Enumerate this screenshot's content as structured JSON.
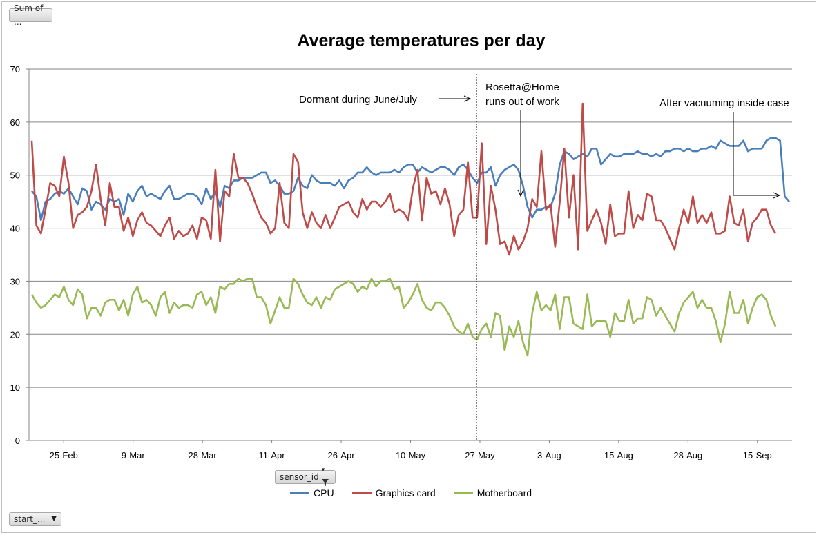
{
  "pivot": {
    "values_button": "Sum of ...",
    "series_field_button": "sensor_id",
    "axis_field_button": "start_..."
  },
  "chart_data": {
    "type": "line",
    "title": "Average temperatures per day",
    "ylim": [
      0,
      70
    ],
    "yticks": [
      0,
      10,
      20,
      30,
      40,
      50,
      60,
      70
    ],
    "xtick_labels": [
      "25-Feb",
      "9-Mar",
      "28-Mar",
      "11-Apr",
      "26-Apr",
      "10-May",
      "27-May",
      "3-Aug",
      "15-Aug",
      "28-Aug",
      "15-Sep"
    ],
    "grid": "horizontal",
    "legend_position": "bottom",
    "divider_after_index": 166,
    "series": [
      {
        "name": "CPU",
        "color": "#4a7ebb",
        "values": [
          47.0,
          46.0,
          41.5,
          45.0,
          45.5,
          46.5,
          47.0,
          46.5,
          47.5,
          46.0,
          44.5,
          47.5,
          47.0,
          43.5,
          45.0,
          44.5,
          43.5,
          45.5,
          45.0,
          45.5,
          42.5,
          46.5,
          45.0,
          47.0,
          48.0,
          46.0,
          46.5,
          46.0,
          45.5,
          47.0,
          48.0,
          45.5,
          45.5,
          46.0,
          46.5,
          46.5,
          46.0,
          44.5,
          47.5,
          45.5,
          47.0,
          44.0,
          48.0,
          47.5,
          49.0,
          49.0,
          49.5,
          49.5,
          49.5,
          50.0,
          50.5,
          50.5,
          48.5,
          49.0,
          48.0,
          46.5,
          46.5,
          47.0,
          49.5,
          48.0,
          47.5,
          50.0,
          49.0,
          48.5,
          48.5,
          48.5,
          48.0,
          49.0,
          47.5,
          49.0,
          49.5,
          50.5,
          50.5,
          51.5,
          50.5,
          50.0,
          50.5,
          50.5,
          50.5,
          51.0,
          50.5,
          51.5,
          52.0,
          52.0,
          50.5,
          51.5,
          51.0,
          50.5,
          51.0,
          51.5,
          51.5,
          51.0,
          50.0,
          51.5,
          52.0,
          51.0,
          49.5,
          48.5,
          50.5,
          50.5,
          51.5,
          48.0,
          50.0,
          51.0,
          51.5,
          52.0,
          51.0,
          48.0,
          44.0,
          42.0,
          43.5,
          43.5,
          44.0,
          44.0,
          46.5,
          52.0,
          54.5,
          54.0,
          53.0,
          53.5,
          54.0,
          53.5,
          55.0,
          55.0,
          52.0,
          53.0,
          54.0,
          53.5,
          53.5,
          54.0,
          54.0,
          54.0,
          54.5,
          54.0,
          54.0,
          53.5,
          54.0,
          53.5,
          54.5,
          54.5,
          55.0,
          55.0,
          54.5,
          55.0,
          54.5,
          54.5,
          55.0,
          55.0,
          55.5,
          55.0,
          56.5,
          56.0,
          55.5,
          55.5,
          55.5,
          56.5,
          54.5,
          55.0,
          55.0,
          55.0,
          56.5,
          57.0,
          57.0,
          56.5,
          46.0,
          45.0
        ]
      },
      {
        "name": "Graphics card",
        "color": "#be4b48",
        "values": [
          56.5,
          40.5,
          39.0,
          43.5,
          48.5,
          48.0,
          46.0,
          53.5,
          48.5,
          40.0,
          42.5,
          43.0,
          44.0,
          47.0,
          52.0,
          45.5,
          40.5,
          48.5,
          44.0,
          44.0,
          39.5,
          42.0,
          38.5,
          41.5,
          43.0,
          41.0,
          40.5,
          39.5,
          38.5,
          40.5,
          42.0,
          38.0,
          39.5,
          38.5,
          39.0,
          40.5,
          38.0,
          42.0,
          41.5,
          38.0,
          51.0,
          37.5,
          47.0,
          46.0,
          54.0,
          49.5,
          49.5,
          48.5,
          46.5,
          44.0,
          42.0,
          41.0,
          39.0,
          40.0,
          48.5,
          41.0,
          40.0,
          54.0,
          52.5,
          43.0,
          40.0,
          43.0,
          41.0,
          40.0,
          42.5,
          40.0,
          42.0,
          44.0,
          44.5,
          45.0,
          43.0,
          42.0,
          45.5,
          43.5,
          45.0,
          45.0,
          44.0,
          45.0,
          46.5,
          43.0,
          43.5,
          43.0,
          41.5,
          47.5,
          51.0,
          41.5,
          49.5,
          46.5,
          47.0,
          44.5,
          47.5,
          44.5,
          38.5,
          42.5,
          43.5,
          52.5,
          42.0,
          42.0,
          56.0,
          37.0,
          48.0,
          43.5,
          37.0,
          37.5,
          35.0,
          38.5,
          36.0,
          37.5,
          40.0,
          45.5,
          44.0,
          54.5,
          43.5,
          44.5,
          36.5,
          45.0,
          55.0,
          42.0,
          50.0,
          36.0,
          63.5,
          39.5,
          41.5,
          43.5,
          41.0,
          37.0,
          44.5,
          38.5,
          39.0,
          39.0,
          47.0,
          40.0,
          42.5,
          41.5,
          46.5,
          46.0,
          41.5,
          41.5,
          40.0,
          38.0,
          36.0,
          40.0,
          43.5,
          41.0,
          46.0,
          41.0,
          42.5,
          41.0,
          43.0,
          39.0,
          39.0,
          39.5,
          46.0,
          41.0,
          40.5,
          43.5,
          37.5,
          41.0,
          42.0,
          43.5,
          43.5,
          40.5,
          39.0
        ]
      },
      {
        "name": "Motherboard",
        "color": "#98b954",
        "values": [
          27.5,
          26.0,
          25.0,
          25.5,
          26.5,
          27.5,
          27.0,
          29.0,
          26.5,
          25.5,
          28.5,
          27.5,
          23.0,
          25.0,
          25.0,
          23.5,
          26.0,
          26.5,
          26.5,
          24.5,
          26.5,
          23.5,
          27.5,
          29.0,
          26.0,
          26.5,
          25.5,
          23.5,
          27.0,
          28.0,
          24.0,
          26.0,
          25.0,
          25.5,
          25.5,
          25.0,
          27.5,
          28.0,
          25.5,
          27.0,
          24.0,
          29.0,
          28.5,
          29.5,
          29.5,
          30.5,
          30.0,
          30.5,
          30.5,
          27.0,
          27.0,
          25.5,
          22.0,
          24.5,
          27.0,
          25.0,
          25.0,
          30.5,
          29.5,
          27.5,
          26.0,
          25.5,
          27.0,
          25.0,
          27.0,
          26.5,
          28.5,
          29.0,
          29.5,
          30.0,
          29.5,
          28.0,
          29.0,
          28.5,
          30.5,
          29.0,
          30.0,
          30.0,
          30.5,
          28.5,
          29.0,
          25.0,
          26.0,
          27.5,
          29.5,
          26.5,
          25.0,
          24.5,
          26.0,
          26.0,
          25.0,
          23.5,
          21.5,
          20.5,
          20.0,
          22.0,
          19.5,
          19.0,
          21.0,
          22.0,
          19.5,
          24.0,
          23.5,
          17.0,
          21.5,
          19.5,
          22.5,
          18.5,
          16.0,
          24.0,
          28.0,
          24.5,
          25.5,
          24.5,
          27.5,
          21.0,
          27.0,
          27.0,
          22.0,
          21.5,
          21.0,
          27.5,
          21.5,
          22.5,
          22.5,
          22.5,
          19.5,
          24.0,
          22.5,
          22.5,
          26.5,
          22.0,
          23.0,
          23.0,
          27.0,
          26.5,
          23.5,
          25.0,
          23.5,
          22.0,
          20.5,
          24.0,
          26.0,
          27.0,
          28.0,
          25.0,
          26.5,
          25.0,
          25.0,
          22.5,
          18.5,
          22.0,
          28.0,
          24.0,
          24.0,
          26.5,
          22.0,
          25.0,
          27.0,
          27.5,
          26.5,
          23.5,
          21.5
        ]
      }
    ],
    "annotations": {
      "dormant": "Dormant during June/July",
      "rosetta_line1": "Rosetta@Home",
      "rosetta_line2": "runs out of work",
      "vacuum": "After vacuuming inside case"
    }
  }
}
